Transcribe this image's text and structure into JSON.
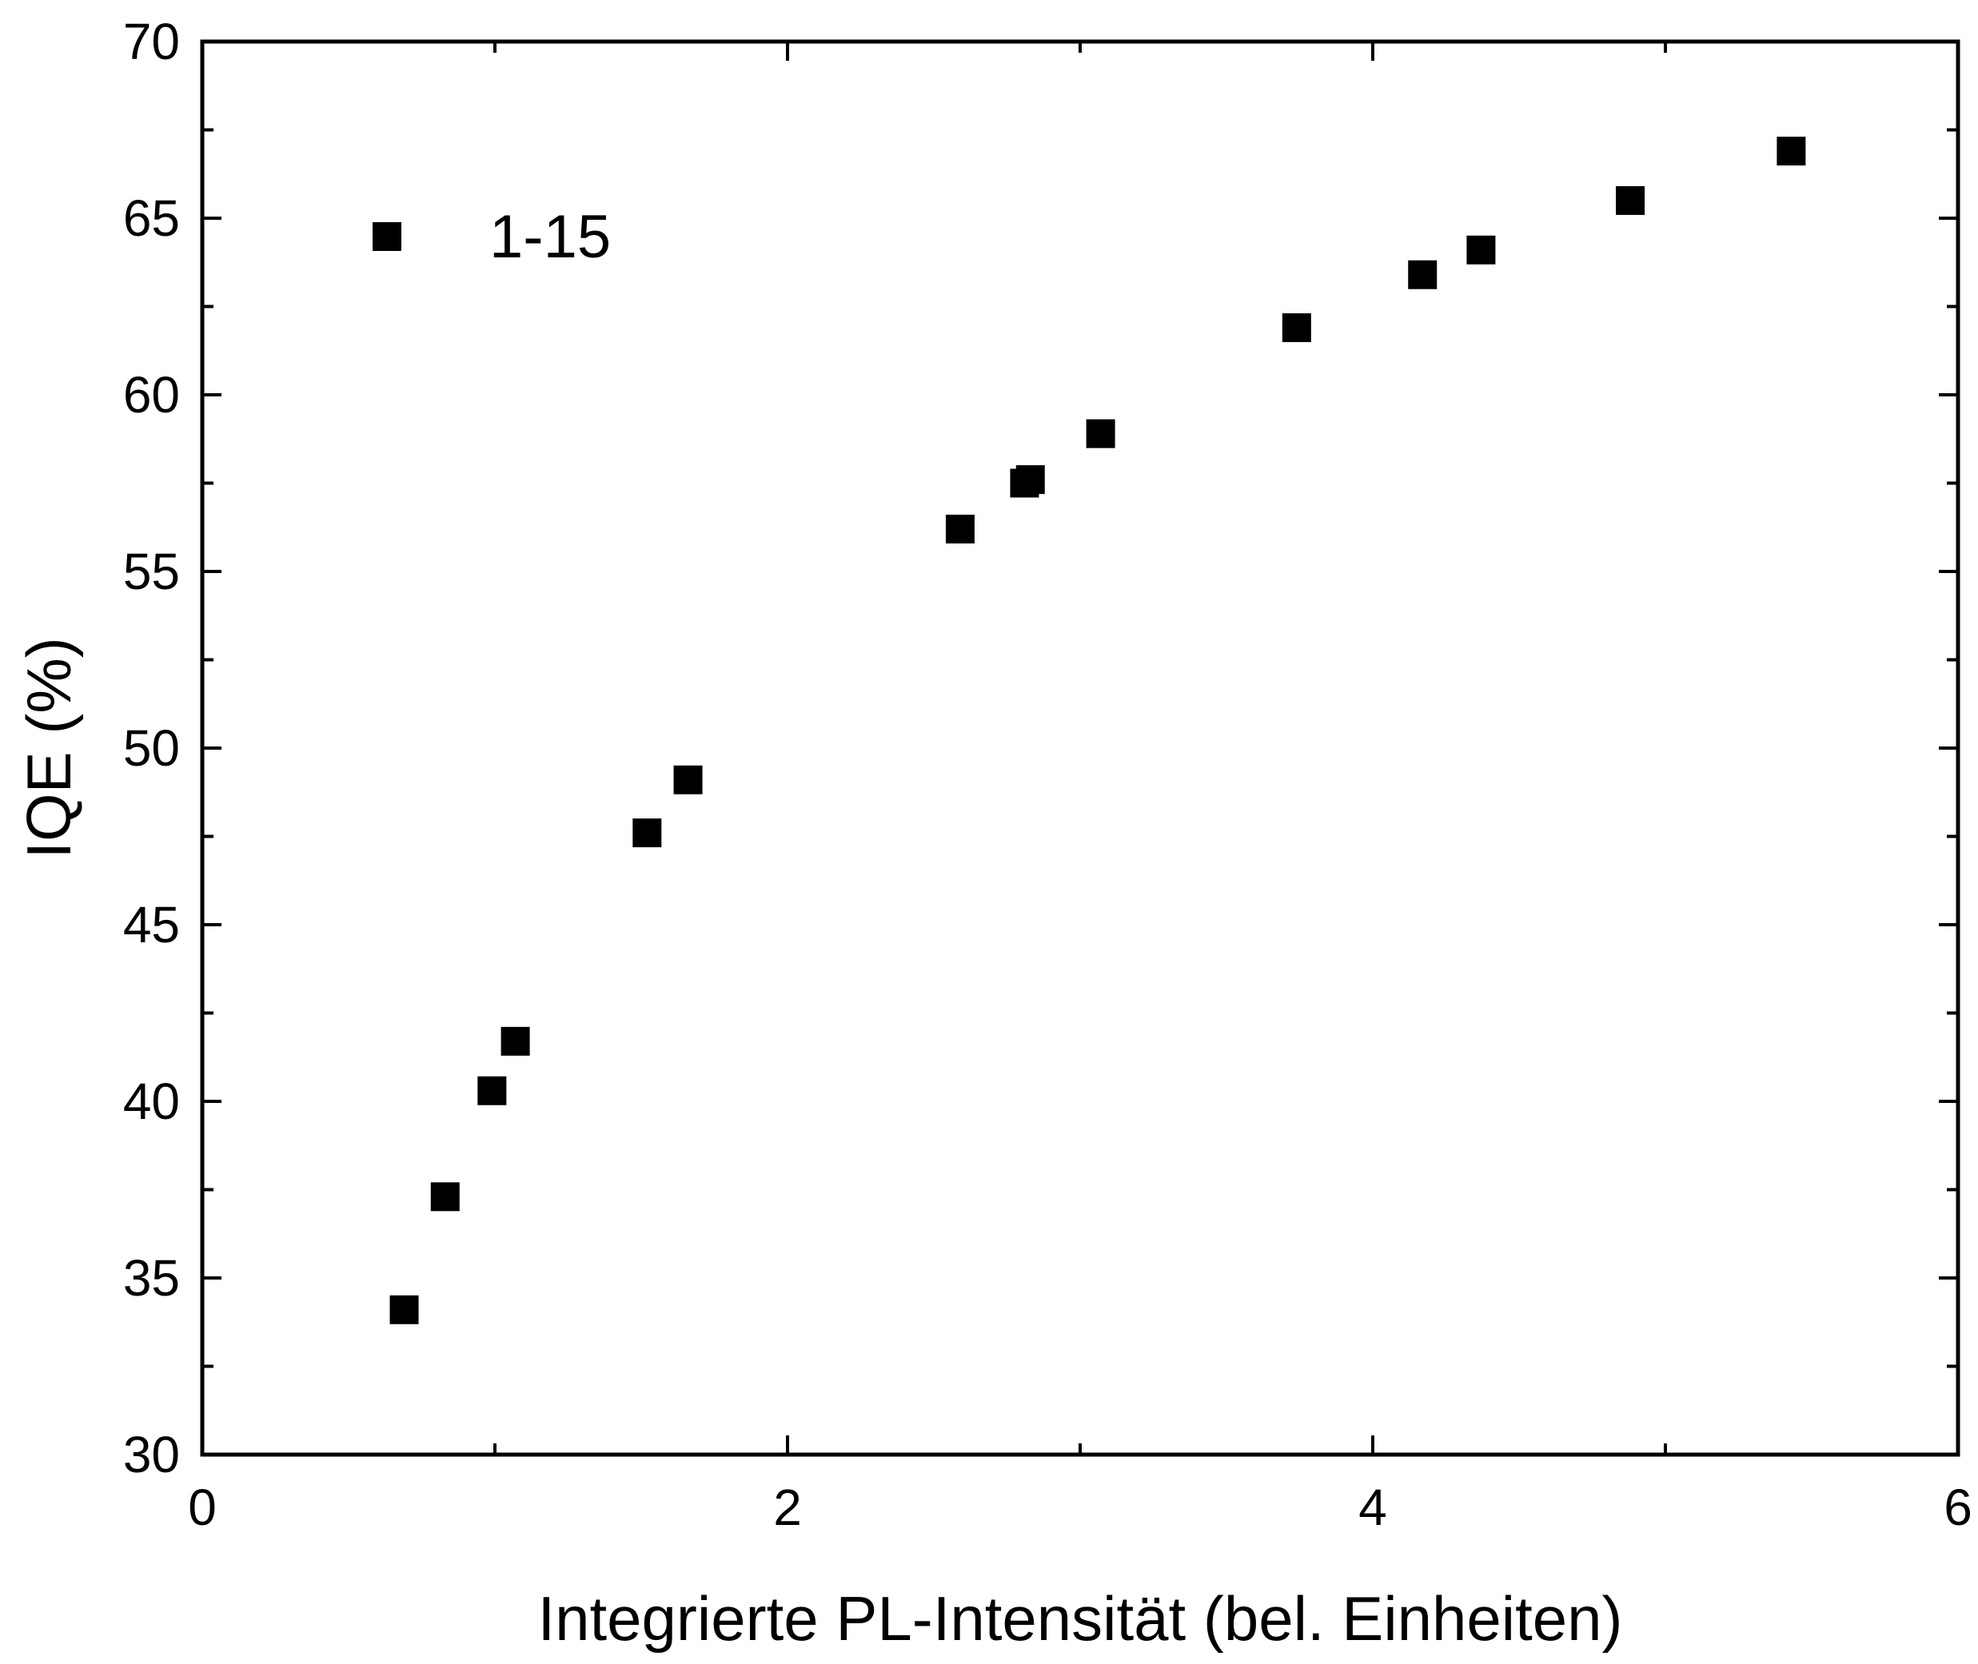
{
  "chart_data": {
    "type": "scatter",
    "xlabel": "Integrierte PL-Intensität (bel. Einheiten)",
    "ylabel": "IQE (%)",
    "xlim": [
      0,
      6
    ],
    "ylim": [
      30,
      70
    ],
    "x_ticks": [
      0,
      2,
      4,
      6
    ],
    "x_minor_ticks": [
      1,
      3,
      5
    ],
    "y_ticks": [
      30,
      35,
      40,
      45,
      50,
      55,
      60,
      65,
      70
    ],
    "y_minor_ticks": [
      32.5,
      37.5,
      42.5,
      47.5,
      52.5,
      57.5,
      62.5,
      67.5
    ],
    "grid": false,
    "legend_position": "top-left",
    "marker": "square",
    "series": [
      {
        "name": "1-15",
        "color": "#000000",
        "points": [
          {
            "x": 0.69,
            "y": 34.1
          },
          {
            "x": 0.83,
            "y": 37.3
          },
          {
            "x": 0.99,
            "y": 40.3
          },
          {
            "x": 1.07,
            "y": 41.7
          },
          {
            "x": 1.52,
            "y": 47.6
          },
          {
            "x": 1.66,
            "y": 49.1
          },
          {
            "x": 2.59,
            "y": 56.2
          },
          {
            "x": 2.81,
            "y": 57.5
          },
          {
            "x": 2.83,
            "y": 57.6
          },
          {
            "x": 3.07,
            "y": 58.9
          },
          {
            "x": 3.74,
            "y": 61.9
          },
          {
            "x": 4.17,
            "y": 63.4
          },
          {
            "x": 4.37,
            "y": 64.1
          },
          {
            "x": 4.88,
            "y": 65.5
          },
          {
            "x": 5.43,
            "y": 66.9
          }
        ]
      }
    ]
  }
}
